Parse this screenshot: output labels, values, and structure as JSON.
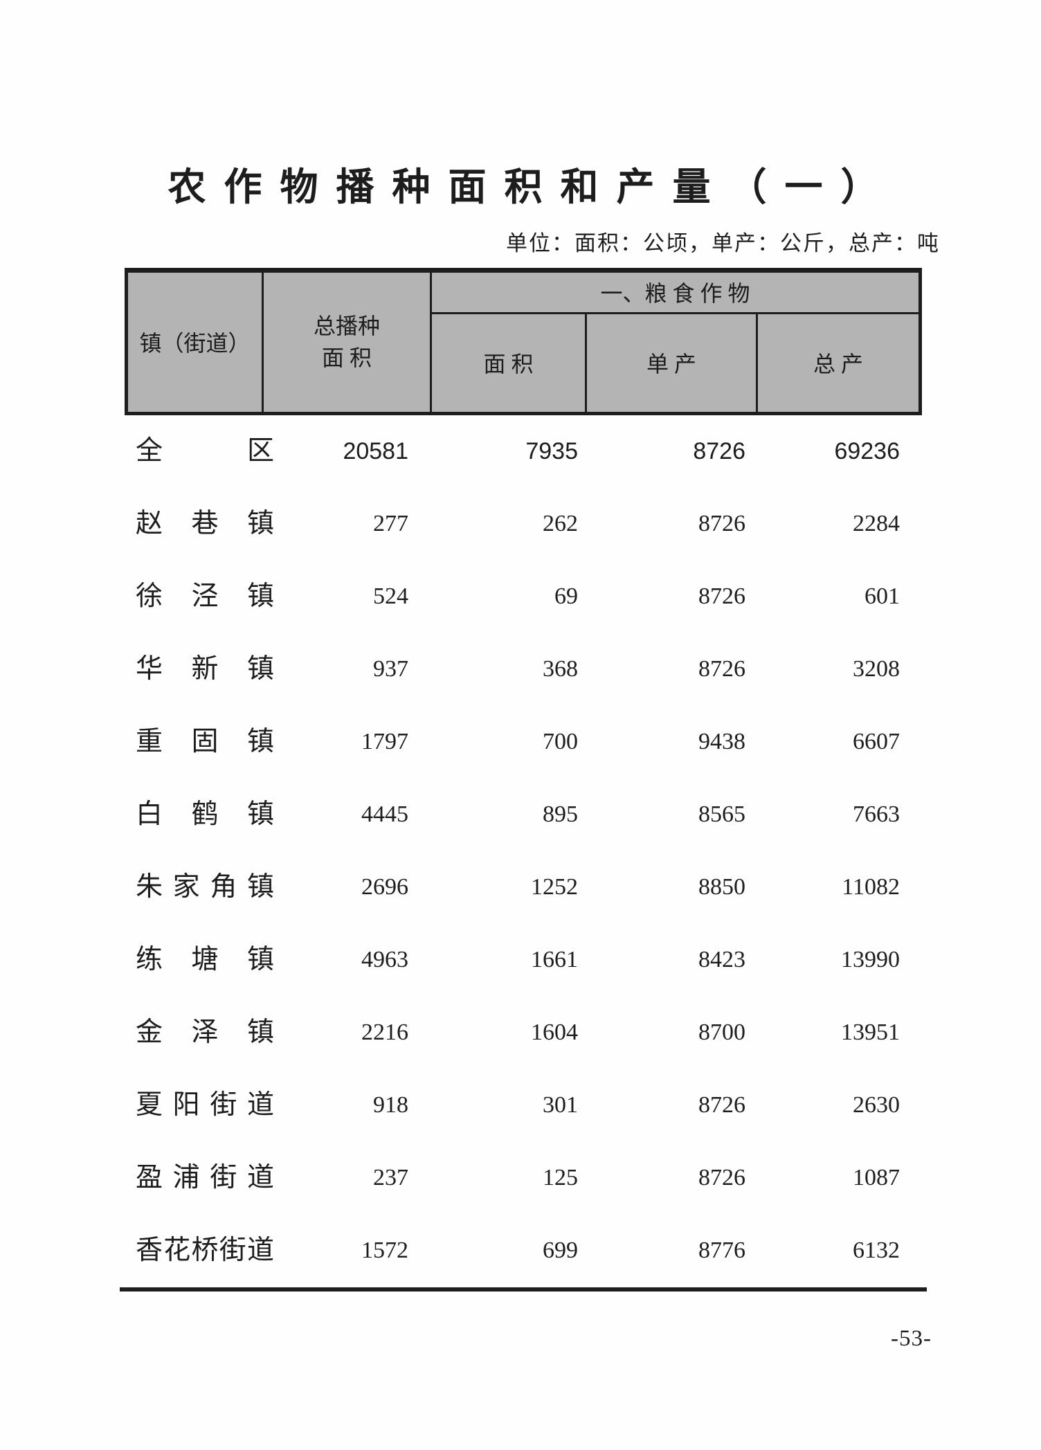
{
  "title": "农作物播种面积和产量（一）",
  "units_note": "单位：面积：公顷，单产：公斤，总产：吨",
  "page_number": "-53-",
  "colors": {
    "header_bg": "#b4b4b4",
    "line": "#1d1d1d",
    "text": "#1d1d1d"
  },
  "table": {
    "corner_header": "镇（街道）",
    "total_sown_header_line1": "总播种",
    "total_sown_header_line2": "面 积",
    "group_header": "一、粮 食 作 物",
    "sub_headers": {
      "area": "面 积",
      "yield_per_unit": "单 产",
      "total_output": "总 产"
    },
    "rows": [
      {
        "label": "全区",
        "values": [
          "20581",
          "7935",
          "8726",
          "69236"
        ]
      },
      {
        "label": "赵巷镇",
        "values": [
          "277",
          "262",
          "8726",
          "2284"
        ]
      },
      {
        "label": "徐泾镇",
        "values": [
          "524",
          "69",
          "8726",
          "601"
        ]
      },
      {
        "label": "华新镇",
        "values": [
          "937",
          "368",
          "8726",
          "3208"
        ]
      },
      {
        "label": "重固镇",
        "values": [
          "1797",
          "700",
          "9438",
          "6607"
        ]
      },
      {
        "label": "白鹤镇",
        "values": [
          "4445",
          "895",
          "8565",
          "7663"
        ]
      },
      {
        "label": "朱家角镇",
        "values": [
          "2696",
          "1252",
          "8850",
          "11082"
        ]
      },
      {
        "label": "练塘镇",
        "values": [
          "4963",
          "1661",
          "8423",
          "13990"
        ]
      },
      {
        "label": "金泽镇",
        "values": [
          "2216",
          "1604",
          "8700",
          "13951"
        ]
      },
      {
        "label": "夏阳街道",
        "values": [
          "918",
          "301",
          "8726",
          "2630"
        ]
      },
      {
        "label": "盈浦街道",
        "values": [
          "237",
          "125",
          "8726",
          "1087"
        ]
      },
      {
        "label": "香花桥街道",
        "values": [
          "1572",
          "699",
          "8776",
          "6132"
        ]
      }
    ]
  }
}
